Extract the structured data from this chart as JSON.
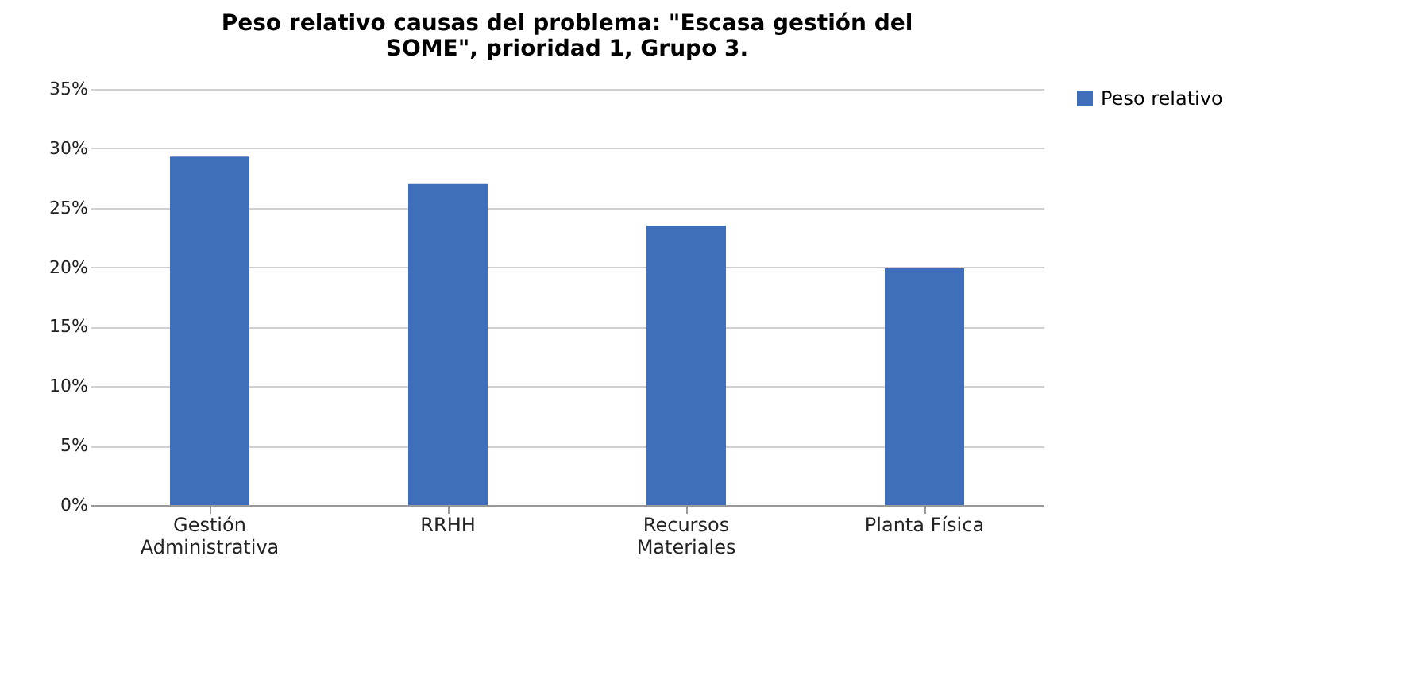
{
  "chart_data": {
    "type": "bar",
    "title": "Peso relativo causas del problema: \"Escasa gestión del SOME\", prioridad 1, Grupo 3.",
    "categories": [
      "Gestión Administrativa",
      "RRHH",
      "Recursos Materiales",
      "Planta Física"
    ],
    "series": [
      {
        "name": "Peso relativo",
        "color": "#3f6fba",
        "values": [
          29.3,
          27.0,
          23.5,
          19.9
        ]
      }
    ],
    "ylim": [
      0,
      35
    ],
    "yticks": [
      {
        "value": 0,
        "label": "0%"
      },
      {
        "value": 5,
        "label": "5%"
      },
      {
        "value": 10,
        "label": "10%"
      },
      {
        "value": 15,
        "label": "15%"
      },
      {
        "value": 20,
        "label": "20%"
      },
      {
        "value": 25,
        "label": "25%"
      },
      {
        "value": 30,
        "label": "30%"
      },
      {
        "value": 35,
        "label": "35%"
      }
    ],
    "grid": "y",
    "legend": "right"
  }
}
